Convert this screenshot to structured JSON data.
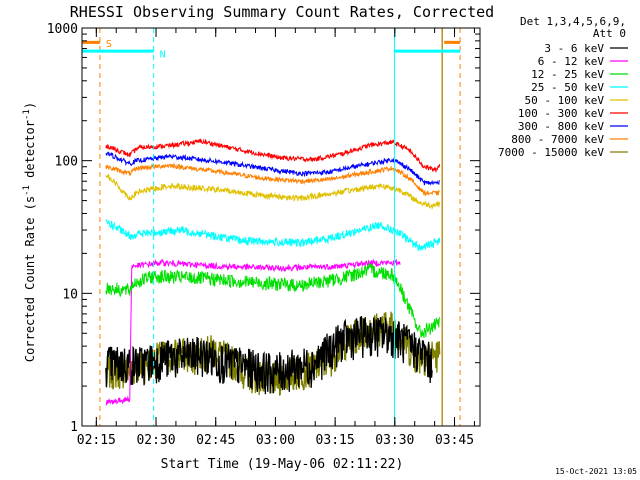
{
  "chart_data": {
    "type": "line",
    "title": "RHESSI Observing Summary Count Rates, Corrected",
    "xlabel": "Start Time (19-May-06 02:11:22)",
    "ylabel_main": "Corrected Count Rate (s",
    "ylabel_sup1": "-1",
    "ylabel_mid": " detector",
    "ylabel_sup2": "-1",
    "ylabel_end": ")",
    "y_scale": "log",
    "ylim": [
      1,
      1000
    ],
    "xlim_minutes": [
      0,
      100
    ],
    "x_ticks": [
      {
        "label": "02:15",
        "minutes": 3.6
      },
      {
        "label": "02:30",
        "minutes": 18.6
      },
      {
        "label": "02:45",
        "minutes": 33.6
      },
      {
        "label": "03:00",
        "minutes": 48.6
      },
      {
        "label": "03:15",
        "minutes": 63.6
      },
      {
        "label": "03:30",
        "minutes": 78.6
      },
      {
        "label": "03:45",
        "minutes": 93.6
      }
    ],
    "y_ticks": [
      {
        "label": "1",
        "value": 1
      },
      {
        "label": "10",
        "value": 10
      },
      {
        "label": "100",
        "value": 100
      },
      {
        "label": "1000",
        "value": 1000
      }
    ],
    "legend_header": [
      "Det 1,3,4,5,6,9,",
      "Att 0"
    ],
    "legend_position": "right",
    "series": [
      {
        "name": "3 - 6 keV",
        "color": "#000000",
        "values": [
          [
            6,
            3
          ],
          [
            15,
            3
          ],
          [
            20,
            3.3
          ],
          [
            30,
            3.5
          ],
          [
            38,
            3
          ],
          [
            48,
            2.6
          ],
          [
            58,
            3
          ],
          [
            65,
            4.5
          ],
          [
            70,
            5
          ],
          [
            78,
            5
          ],
          [
            86,
            3.5
          ],
          [
            88,
            3
          ]
        ]
      },
      {
        "name": "6 - 12 keV",
        "color": "#ff00ff",
        "values": [
          [
            6,
            1.5
          ],
          [
            12,
            1.6
          ],
          [
            12.5,
            16
          ],
          [
            20,
            17
          ],
          [
            35,
            16
          ],
          [
            50,
            15.5
          ],
          [
            65,
            16
          ],
          [
            72,
            17
          ],
          [
            80,
            17
          ]
        ]
      },
      {
        "name": "12 - 25 keV",
        "color": "#00e000",
        "values": [
          [
            6,
            11
          ],
          [
            12,
            10.5
          ],
          [
            13,
            12
          ],
          [
            18,
            13.5
          ],
          [
            30,
            13
          ],
          [
            45,
            12
          ],
          [
            55,
            11.5
          ],
          [
            65,
            13
          ],
          [
            72,
            15
          ],
          [
            78,
            14
          ],
          [
            80,
            11
          ],
          [
            85,
            5
          ],
          [
            90,
            6
          ]
        ]
      },
      {
        "name": "25 - 50 keV",
        "color": "#00ffff",
        "values": [
          [
            6,
            35
          ],
          [
            12,
            27
          ],
          [
            14,
            28
          ],
          [
            25,
            30
          ],
          [
            40,
            25
          ],
          [
            55,
            24
          ],
          [
            62,
            26
          ],
          [
            70,
            30
          ],
          [
            75,
            33
          ],
          [
            80,
            28
          ],
          [
            85,
            22
          ],
          [
            90,
            25
          ]
        ]
      },
      {
        "name": "50 - 100 keV",
        "color": "#e0c000",
        "values": [
          [
            6,
            80
          ],
          [
            12,
            52
          ],
          [
            14,
            58
          ],
          [
            22,
            65
          ],
          [
            35,
            60
          ],
          [
            45,
            55
          ],
          [
            55,
            52
          ],
          [
            65,
            58
          ],
          [
            75,
            65
          ],
          [
            80,
            60
          ],
          [
            85,
            48
          ],
          [
            88,
            46
          ],
          [
            90,
            48
          ]
        ]
      },
      {
        "name": "100 - 300 keV",
        "color": "#ff0000",
        "values": [
          [
            6,
            130
          ],
          [
            12,
            110
          ],
          [
            14,
            125
          ],
          [
            22,
            130
          ],
          [
            30,
            140
          ],
          [
            40,
            120
          ],
          [
            50,
            105
          ],
          [
            58,
            102
          ],
          [
            65,
            112
          ],
          [
            72,
            130
          ],
          [
            78,
            138
          ],
          [
            82,
            122
          ],
          [
            86,
            90
          ],
          [
            89,
            85
          ],
          [
            90,
            95
          ]
        ]
      },
      {
        "name": "300 - 800 keV",
        "color": "#0000ff",
        "values": [
          [
            6,
            115
          ],
          [
            12,
            95
          ],
          [
            14,
            100
          ],
          [
            22,
            108
          ],
          [
            35,
            98
          ],
          [
            45,
            88
          ],
          [
            55,
            80
          ],
          [
            62,
            82
          ],
          [
            70,
            92
          ],
          [
            78,
            102
          ],
          [
            82,
            88
          ],
          [
            86,
            68
          ],
          [
            90,
            68
          ]
        ]
      },
      {
        "name": "800 - 7000 keV",
        "color": "#ff8000",
        "values": [
          [
            6,
            90
          ],
          [
            12,
            80
          ],
          [
            14,
            88
          ],
          [
            22,
            92
          ],
          [
            35,
            82
          ],
          [
            45,
            74
          ],
          [
            55,
            70
          ],
          [
            62,
            72
          ],
          [
            70,
            80
          ],
          [
            78,
            88
          ],
          [
            82,
            75
          ],
          [
            86,
            57
          ],
          [
            90,
            57
          ]
        ]
      },
      {
        "name": "7000 - 15000 keV",
        "color": "#808000",
        "values": [
          [
            6,
            2.6
          ],
          [
            12,
            2.7
          ],
          [
            15,
            2.9
          ],
          [
            20,
            3.4
          ],
          [
            25,
            3.6
          ],
          [
            28,
            3.4
          ],
          [
            33,
            3.8
          ],
          [
            38,
            3.1
          ],
          [
            42,
            2.5
          ],
          [
            48,
            2.3
          ],
          [
            55,
            2.6
          ],
          [
            62,
            3.2
          ],
          [
            66,
            4.4
          ],
          [
            72,
            5.5
          ],
          [
            78,
            5.8
          ],
          [
            84,
            3.4
          ],
          [
            90,
            3.5
          ]
        ]
      }
    ],
    "flag_annotations": [
      {
        "label": "S",
        "color": "#ff8000"
      },
      {
        "label": "N",
        "color": "#00ffff"
      }
    ],
    "footer_timestamp": "15-Oct-2021 13:05"
  }
}
